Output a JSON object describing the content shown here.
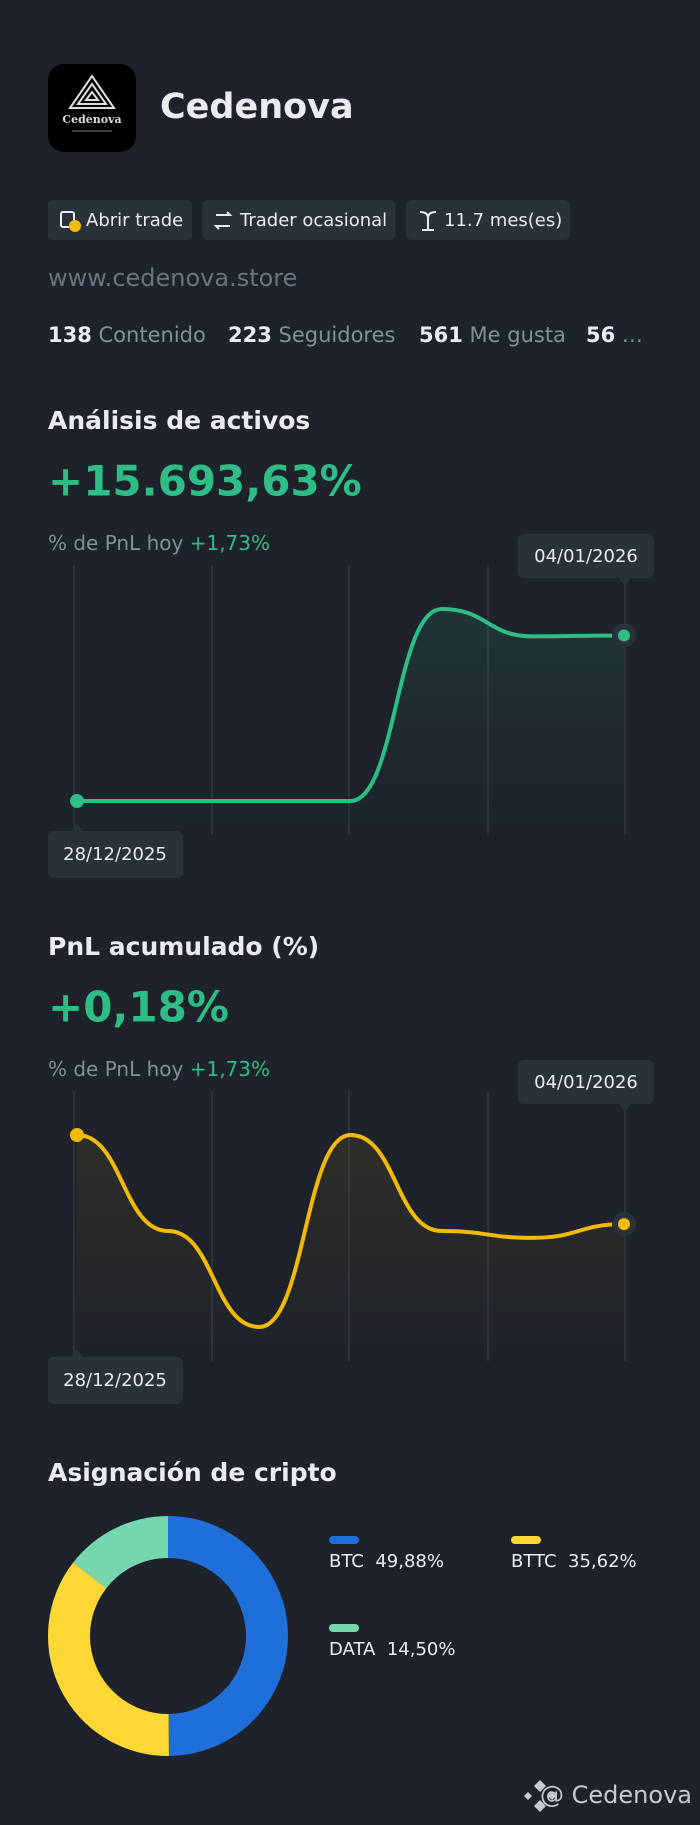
{
  "profile": {
    "name": "Cedenova",
    "logo_text": "Cedenova",
    "badges": [
      "Abrir trade",
      "Trader ocasional",
      "11.7 mes(es)"
    ],
    "website": "www.cedenova.store",
    "stats": [
      {
        "value": 138,
        "label": "Contenido"
      },
      {
        "value": 223,
        "label": "Seguidores"
      },
      {
        "value": 561,
        "label": "Me gusta"
      },
      {
        "value": 56,
        "label": "…"
      }
    ]
  },
  "chart_data": [
    {
      "type": "line",
      "title": "Análisis de activos",
      "headline": "+15.693,63%",
      "subtitle": "% de PnL hoy",
      "subtitle_value": "+1,73%",
      "x": [
        "28/12/2025",
        null,
        null,
        null,
        null,
        null,
        "04/01/2026"
      ],
      "series": [
        {
          "color": "#2ebd85",
          "values": [
            0,
            0,
            0,
            0,
            18200,
            15600,
            15693.63
          ]
        }
      ]
    },
    {
      "type": "line",
      "title": "PnL acumulado (%)",
      "headline": "+0,18%",
      "subtitle": "% de PnL hoy",
      "subtitle_value": "+1,73%",
      "x": [
        "28/12/2025",
        null,
        null,
        null,
        null,
        null,
        "04/01/2026"
      ],
      "series": [
        {
          "color": "#f0b90b",
          "values": [
            0.31,
            0.17,
            0.03,
            0.31,
            0.17,
            0.16,
            0.18
          ]
        }
      ]
    },
    {
      "type": "pie",
      "title": "Asignación de cripto",
      "categories": [
        "BTC",
        "BTTC",
        "DATA"
      ],
      "values": [
        49.88,
        35.62,
        14.5
      ],
      "value_labels": [
        "49,88%",
        "35,62%",
        "14,50%"
      ],
      "colors": [
        "#1e6fd9",
        "#fdd835",
        "#76d7ae"
      ]
    }
  ],
  "footer": "@ Cedenova"
}
